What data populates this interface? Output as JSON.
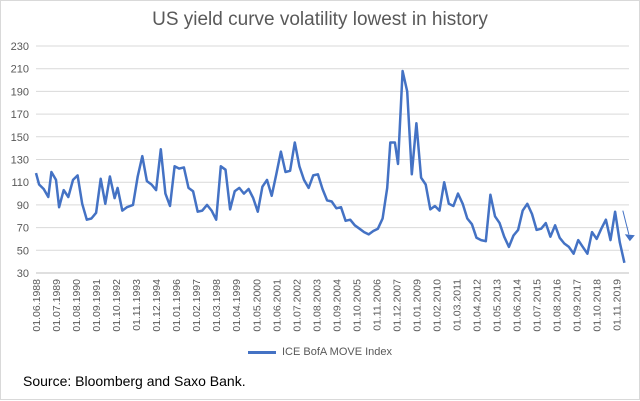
{
  "chart_data": {
    "type": "line",
    "title": "US yield curve volatility lowest in history",
    "xlabel": "",
    "ylabel": "",
    "ylim": [
      30,
      230
    ],
    "yticks": [
      30,
      50,
      70,
      90,
      110,
      130,
      150,
      170,
      190,
      210,
      230
    ],
    "grid": "horizontal",
    "legend_position": "bottom",
    "x_tick_labels": [
      "01.06.1988",
      "01.07.1989",
      "01.08.1990",
      "01.09.1991",
      "01.10.1992",
      "01.11.1993",
      "01.12.1994",
      "01.01.1996",
      "01.02.1997",
      "01.03.1998",
      "01.04.1999",
      "01.05.2000",
      "01.06.2001",
      "01.07.2002",
      "01.08.2003",
      "01.09.2004",
      "01.10.2005",
      "01.11.2006",
      "01.12.2007",
      "01.01.2009",
      "01.02.2010",
      "01.03.2011",
      "01.04.2012",
      "01.05.2013",
      "01.06.2014",
      "01.07.2015",
      "01.08.2016",
      "01.09.2017",
      "01.10.2018",
      "01.11.2019"
    ],
    "x_range": [
      "1988-06",
      "2020-07"
    ],
    "series": [
      {
        "name": "ICE BofA MOVE Index",
        "color": "#4472c4",
        "points": [
          [
            "1988-06",
            118
          ],
          [
            "1988-08",
            108
          ],
          [
            "1988-11",
            104
          ],
          [
            "1989-02",
            97
          ],
          [
            "1989-04",
            119
          ],
          [
            "1989-07",
            112
          ],
          [
            "1989-09",
            88
          ],
          [
            "1989-12",
            103
          ],
          [
            "1990-03",
            97
          ],
          [
            "1990-06",
            112
          ],
          [
            "1990-09",
            116
          ],
          [
            "1990-12",
            91
          ],
          [
            "1991-03",
            77
          ],
          [
            "1991-06",
            78
          ],
          [
            "1991-09",
            83
          ],
          [
            "1991-12",
            113
          ],
          [
            "1992-03",
            91
          ],
          [
            "1992-06",
            115
          ],
          [
            "1992-09",
            96
          ],
          [
            "1992-11",
            105
          ],
          [
            "1993-02",
            85
          ],
          [
            "1993-05",
            88
          ],
          [
            "1993-09",
            90
          ],
          [
            "1993-12",
            115
          ],
          [
            "1994-03",
            133
          ],
          [
            "1994-06",
            111
          ],
          [
            "1994-09",
            108
          ],
          [
            "1994-12",
            103
          ],
          [
            "1995-03",
            139
          ],
          [
            "1995-06",
            100
          ],
          [
            "1995-09",
            89
          ],
          [
            "1995-12",
            124
          ],
          [
            "1996-03",
            122
          ],
          [
            "1996-06",
            123
          ],
          [
            "1996-09",
            105
          ],
          [
            "1996-12",
            102
          ],
          [
            "1997-03",
            84
          ],
          [
            "1997-06",
            85
          ],
          [
            "1997-09",
            90
          ],
          [
            "1997-12",
            85
          ],
          [
            "1998-03",
            77
          ],
          [
            "1998-06",
            124
          ],
          [
            "1998-09",
            121
          ],
          [
            "1998-12",
            86
          ],
          [
            "1999-03",
            102
          ],
          [
            "1999-06",
            105
          ],
          [
            "1999-09",
            100
          ],
          [
            "1999-12",
            104
          ],
          [
            "2000-03",
            96
          ],
          [
            "2000-06",
            84
          ],
          [
            "2000-09",
            106
          ],
          [
            "2000-12",
            112
          ],
          [
            "2001-03",
            98
          ],
          [
            "2001-06",
            117
          ],
          [
            "2001-09",
            137
          ],
          [
            "2001-12",
            119
          ],
          [
            "2002-03",
            120
          ],
          [
            "2002-06",
            145
          ],
          [
            "2002-09",
            124
          ],
          [
            "2002-12",
            112
          ],
          [
            "2003-03",
            105
          ],
          [
            "2003-06",
            116
          ],
          [
            "2003-09",
            117
          ],
          [
            "2003-12",
            104
          ],
          [
            "2004-03",
            94
          ],
          [
            "2004-06",
            93
          ],
          [
            "2004-09",
            87
          ],
          [
            "2004-12",
            88
          ],
          [
            "2005-03",
            76
          ],
          [
            "2005-06",
            77
          ],
          [
            "2005-09",
            72
          ],
          [
            "2005-12",
            69
          ],
          [
            "2006-03",
            66
          ],
          [
            "2006-06",
            64
          ],
          [
            "2006-09",
            67
          ],
          [
            "2006-12",
            69
          ],
          [
            "2007-03",
            78
          ],
          [
            "2007-06",
            105
          ],
          [
            "2007-08",
            145
          ],
          [
            "2007-11",
            145
          ],
          [
            "2008-01",
            126
          ],
          [
            "2008-04",
            208
          ],
          [
            "2008-07",
            190
          ],
          [
            "2008-10",
            117
          ],
          [
            "2009-01",
            162
          ],
          [
            "2009-04",
            114
          ],
          [
            "2009-07",
            108
          ],
          [
            "2009-10",
            86
          ],
          [
            "2010-01",
            89
          ],
          [
            "2010-04",
            85
          ],
          [
            "2010-07",
            110
          ],
          [
            "2010-10",
            91
          ],
          [
            "2011-01",
            89
          ],
          [
            "2011-04",
            100
          ],
          [
            "2011-07",
            91
          ],
          [
            "2011-10",
            78
          ],
          [
            "2012-01",
            73
          ],
          [
            "2012-04",
            61
          ],
          [
            "2012-07",
            59
          ],
          [
            "2012-10",
            58
          ],
          [
            "2013-01",
            99
          ],
          [
            "2013-04",
            80
          ],
          [
            "2013-07",
            74
          ],
          [
            "2013-10",
            62
          ],
          [
            "2014-01",
            53
          ],
          [
            "2014-04",
            63
          ],
          [
            "2014-07",
            68
          ],
          [
            "2014-10",
            85
          ],
          [
            "2015-01",
            91
          ],
          [
            "2015-04",
            82
          ],
          [
            "2015-07",
            68
          ],
          [
            "2015-10",
            69
          ],
          [
            "2016-01",
            74
          ],
          [
            "2016-04",
            62
          ],
          [
            "2016-07",
            72
          ],
          [
            "2016-10",
            61
          ],
          [
            "2017-01",
            56
          ],
          [
            "2017-04",
            53
          ],
          [
            "2017-07",
            47
          ],
          [
            "2017-10",
            59
          ],
          [
            "2018-01",
            53
          ],
          [
            "2018-04",
            47
          ],
          [
            "2018-07",
            66
          ],
          [
            "2018-10",
            60
          ],
          [
            "2019-01",
            69
          ],
          [
            "2019-04",
            77
          ],
          [
            "2019-07",
            59
          ],
          [
            "2019-10",
            84
          ],
          [
            "2020-01",
            57
          ],
          [
            "2020-04",
            39
          ]
        ]
      }
    ],
    "annotation": {
      "type": "arrow",
      "direction": "down"
    }
  },
  "source_text": "Source: Bloomberg and Saxo Bank."
}
